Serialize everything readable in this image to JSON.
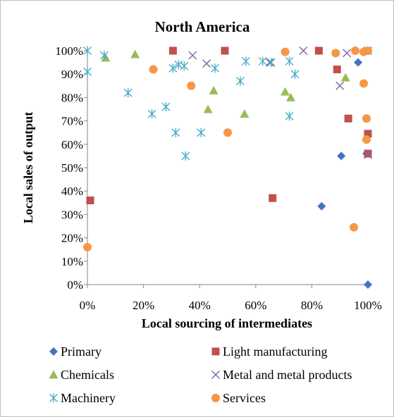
{
  "chart_data": {
    "type": "scatter",
    "title": "North America",
    "xlabel": "Local sourcing of intermediates",
    "ylabel": "Local sales of output",
    "xlim": [
      0,
      100
    ],
    "ylim": [
      0,
      100
    ],
    "x_ticks": [
      "0%",
      "20%",
      "40%",
      "60%",
      "80%",
      "100%"
    ],
    "y_ticks": [
      "0%",
      "10%",
      "20%",
      "30%",
      "40%",
      "50%",
      "60%",
      "70%",
      "80%",
      "90%",
      "100%"
    ],
    "grid": false,
    "legend_position": "bottom",
    "series": [
      {
        "name": "Primary",
        "marker": "diamond",
        "color": "#4472c4",
        "points": [
          [
            83.5,
            33.5
          ],
          [
            90.5,
            55
          ],
          [
            96.5,
            95
          ],
          [
            99.5,
            56
          ],
          [
            100,
            0
          ]
        ]
      },
      {
        "name": "Light manufacturing",
        "marker": "square",
        "color": "#c0504d",
        "points": [
          [
            1,
            36
          ],
          [
            30.5,
            100
          ],
          [
            49,
            100
          ],
          [
            66,
            37
          ],
          [
            82.5,
            100
          ],
          [
            89,
            92
          ],
          [
            93,
            71
          ],
          [
            100,
            64.5
          ],
          [
            100,
            56
          ]
        ]
      },
      {
        "name": "Chemicals",
        "marker": "triangle",
        "color": "#9bbb59",
        "points": [
          [
            6.5,
            97
          ],
          [
            17,
            98.5
          ],
          [
            43,
            75
          ],
          [
            45,
            83
          ],
          [
            56,
            73
          ],
          [
            70.5,
            82.5
          ],
          [
            72.5,
            80
          ],
          [
            92,
            88.5
          ]
        ]
      },
      {
        "name": "Metal and metal products",
        "marker": "x",
        "color": "#8064a2",
        "points": [
          [
            37.5,
            98
          ],
          [
            42.5,
            94.5
          ],
          [
            65,
            95
          ],
          [
            77,
            100
          ],
          [
            90,
            85
          ],
          [
            92.5,
            99
          ],
          [
            100,
            100
          ],
          [
            100,
            55.5
          ]
        ]
      },
      {
        "name": "Machinery",
        "marker": "asterisk",
        "color": "#4bacc6",
        "points": [
          [
            0,
            100
          ],
          [
            0,
            91
          ],
          [
            6,
            98
          ],
          [
            14.5,
            82
          ],
          [
            23,
            73
          ],
          [
            28,
            76
          ],
          [
            30.5,
            92.5
          ],
          [
            31.5,
            65
          ],
          [
            32.5,
            94
          ],
          [
            34.5,
            93.5
          ],
          [
            35,
            55
          ],
          [
            40.5,
            65
          ],
          [
            45.5,
            92.5
          ],
          [
            54.5,
            87
          ],
          [
            56.5,
            95.5
          ],
          [
            62.5,
            95.5
          ],
          [
            65.5,
            95
          ],
          [
            72,
            95.5
          ],
          [
            72,
            72
          ],
          [
            74,
            90
          ]
        ]
      },
      {
        "name": "Services",
        "marker": "circle",
        "color": "#f79646",
        "points": [
          [
            0,
            16
          ],
          [
            23.5,
            92
          ],
          [
            37,
            85
          ],
          [
            50,
            65
          ],
          [
            70.5,
            99.5
          ],
          [
            88.5,
            99
          ],
          [
            95,
            24.5
          ],
          [
            95.5,
            100
          ],
          [
            98.5,
            86
          ],
          [
            98.5,
            99.5
          ],
          [
            99.5,
            71
          ],
          [
            99.5,
            62
          ],
          [
            100,
            100
          ]
        ]
      }
    ]
  }
}
